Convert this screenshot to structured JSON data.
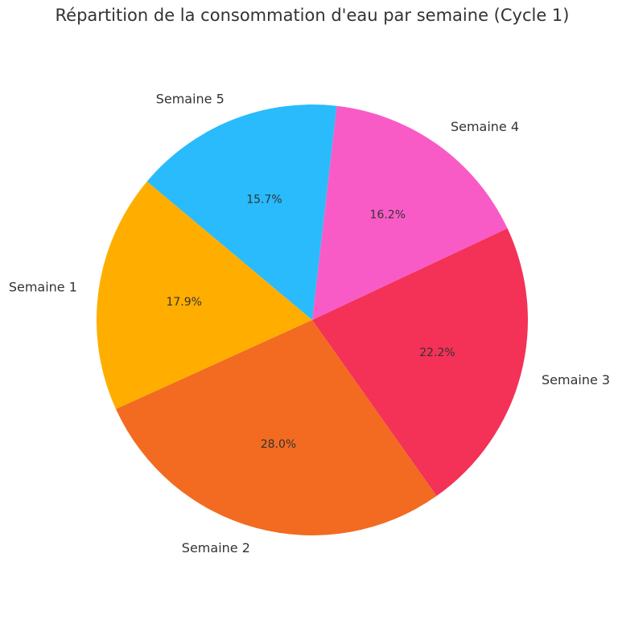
{
  "chart_data": {
    "type": "pie",
    "title": "Répartition de la consommation d'eau par semaine (Cycle 1)",
    "categories": [
      "Semaine 1",
      "Semaine 2",
      "Semaine 3",
      "Semaine 4",
      "Semaine 5"
    ],
    "values": [
      17.9,
      28.0,
      22.2,
      16.2,
      15.7
    ],
    "value_labels": [
      "17.9%",
      "28.0%",
      "22.2%",
      "16.2%",
      "15.7%"
    ],
    "colors": [
      "#ffae00",
      "#f26b21",
      "#f43157",
      "#f95bc6",
      "#29bbfc"
    ]
  }
}
